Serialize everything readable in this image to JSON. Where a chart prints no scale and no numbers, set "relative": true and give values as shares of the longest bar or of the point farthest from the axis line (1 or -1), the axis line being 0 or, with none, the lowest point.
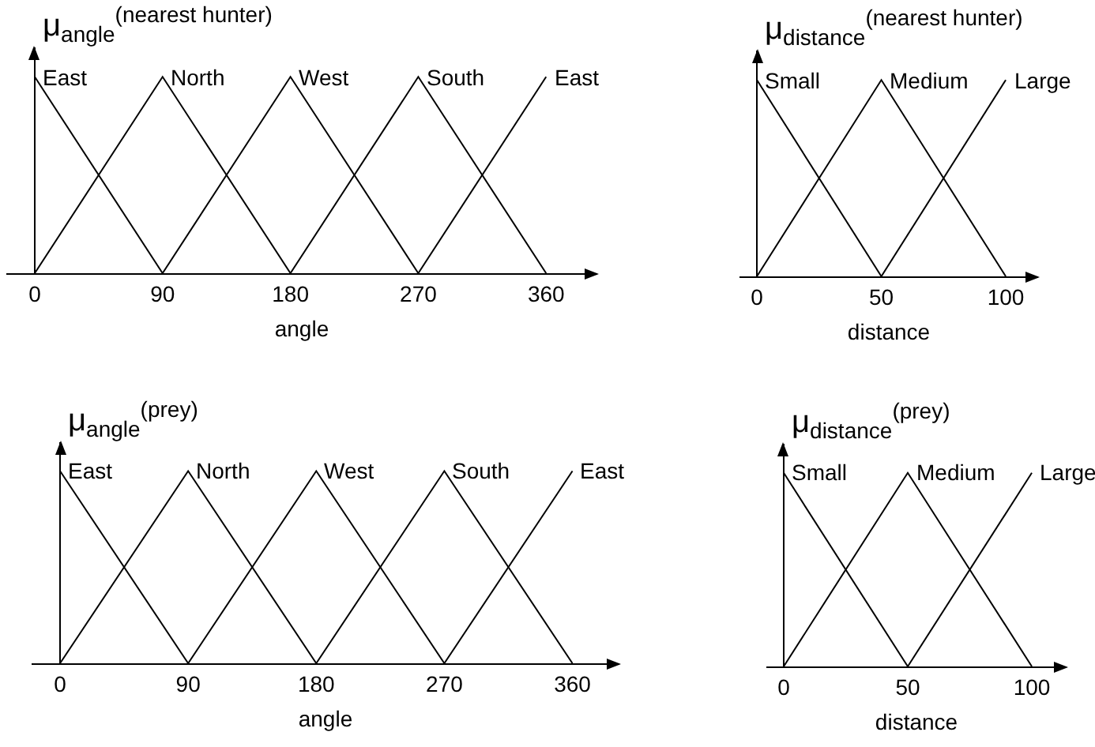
{
  "chart_data": [
    {
      "type": "line",
      "ylabel": "μ$_{angle}$$^{(nearest hunter)}$",
      "xlabel": "angle",
      "relative": true,
      "xlim": [
        -20,
        396
      ],
      "xticks": [
        0,
        90,
        180,
        270,
        360
      ],
      "tick_labels": "x",
      "series": [
        {
          "name": "East",
          "color": "#000000",
          "x": [
            0,
            90
          ],
          "values": [
            1,
            0
          ]
        },
        {
          "name": "North",
          "color": "#000000",
          "x": [
            0,
            90,
            180
          ],
          "values": [
            0,
            1,
            0
          ]
        },
        {
          "name": "West",
          "color": "#000000",
          "x": [
            90,
            180,
            270
          ],
          "values": [
            0,
            1,
            0
          ]
        },
        {
          "name": "South",
          "color": "#000000",
          "x": [
            180,
            270,
            360
          ],
          "values": [
            0,
            1,
            0
          ]
        },
        {
          "name": "East",
          "color": "#000000",
          "x": [
            270,
            360
          ],
          "values": [
            0,
            1
          ]
        }
      ]
    },
    {
      "type": "line",
      "ylabel": "μ$_{distance}$$^{(nearest hunter)}$",
      "xlabel": "distance",
      "relative": true,
      "xlim": [
        -7,
        113
      ],
      "xticks": [
        0,
        50,
        100
      ],
      "tick_labels": "x",
      "series": [
        {
          "name": "Small",
          "color": "#000000",
          "x": [
            0,
            50
          ],
          "values": [
            1,
            0
          ]
        },
        {
          "name": "Medium",
          "color": "#000000",
          "x": [
            0,
            50,
            100
          ],
          "values": [
            0,
            1,
            0
          ]
        },
        {
          "name": "Large",
          "color": "#000000",
          "x": [
            50,
            100
          ],
          "values": [
            0,
            1
          ]
        }
      ]
    },
    {
      "type": "line",
      "ylabel": "μ$_{angle}$$^{(prey)}$",
      "xlabel": "angle",
      "relative": true,
      "xlim": [
        -20,
        393
      ],
      "xticks": [
        0,
        90,
        180,
        270,
        360
      ],
      "tick_labels": "x",
      "series": [
        {
          "name": "East",
          "color": "#000000",
          "x": [
            0,
            90
          ],
          "values": [
            1,
            0
          ]
        },
        {
          "name": "North",
          "color": "#000000",
          "x": [
            0,
            90,
            180
          ],
          "values": [
            0,
            1,
            0
          ]
        },
        {
          "name": "West",
          "color": "#000000",
          "x": [
            90,
            180,
            270
          ],
          "values": [
            0,
            1,
            0
          ]
        },
        {
          "name": "South",
          "color": "#000000",
          "x": [
            180,
            270,
            360
          ],
          "values": [
            0,
            1,
            0
          ]
        },
        {
          "name": "East",
          "color": "#000000",
          "x": [
            270,
            360
          ],
          "values": [
            0,
            1
          ]
        }
      ]
    },
    {
      "type": "line",
      "ylabel": "μ$_{distance}$$^{(prey)}$",
      "xlabel": "distance",
      "relative": true,
      "xlim": [
        -7,
        114
      ],
      "xticks": [
        0,
        50,
        100
      ],
      "tick_labels": "x",
      "series": [
        {
          "name": "Small",
          "color": "#000000",
          "x": [
            0,
            50
          ],
          "values": [
            1,
            0
          ]
        },
        {
          "name": "Medium",
          "color": "#000000",
          "x": [
            0,
            50,
            100
          ],
          "values": [
            0,
            1,
            0
          ]
        },
        {
          "name": "Large",
          "color": "#000000",
          "x": [
            50,
            100
          ],
          "values": [
            0,
            1
          ]
        }
      ]
    }
  ]
}
